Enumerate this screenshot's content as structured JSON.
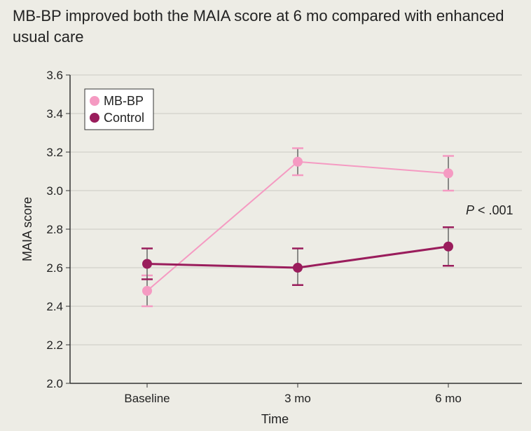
{
  "title": "MB-BP improved both the MAIA score at 6 mo compared with enhanced usual care",
  "chart_data": {
    "type": "line",
    "title": "MB-BP improved both the MAIA score at 6 mo compared with enhanced usual care",
    "xlabel": "Time",
    "ylabel": "MAIA score",
    "categories": [
      "Baseline",
      "3 mo",
      "6 mo"
    ],
    "ylim": [
      2.0,
      3.6
    ],
    "yticks": [
      "2.0",
      "2.2",
      "2.4",
      "2.6",
      "2.8",
      "3.0",
      "3.2",
      "3.4",
      "3.6"
    ],
    "grid": true,
    "legend": "top-left",
    "annotation": {
      "p": "P",
      "rest": " < .001"
    },
    "series": [
      {
        "name": "MB-BP",
        "color": "#f59ac2",
        "values": [
          2.48,
          3.15,
          3.09
        ],
        "lower": [
          2.4,
          3.08,
          3.0
        ],
        "upper": [
          2.56,
          3.22,
          3.18
        ]
      },
      {
        "name": "Control",
        "color": "#9a1d5c",
        "values": [
          2.62,
          2.6,
          2.71
        ],
        "lower": [
          2.54,
          2.51,
          2.61
        ],
        "upper": [
          2.7,
          2.7,
          2.81
        ]
      }
    ]
  }
}
